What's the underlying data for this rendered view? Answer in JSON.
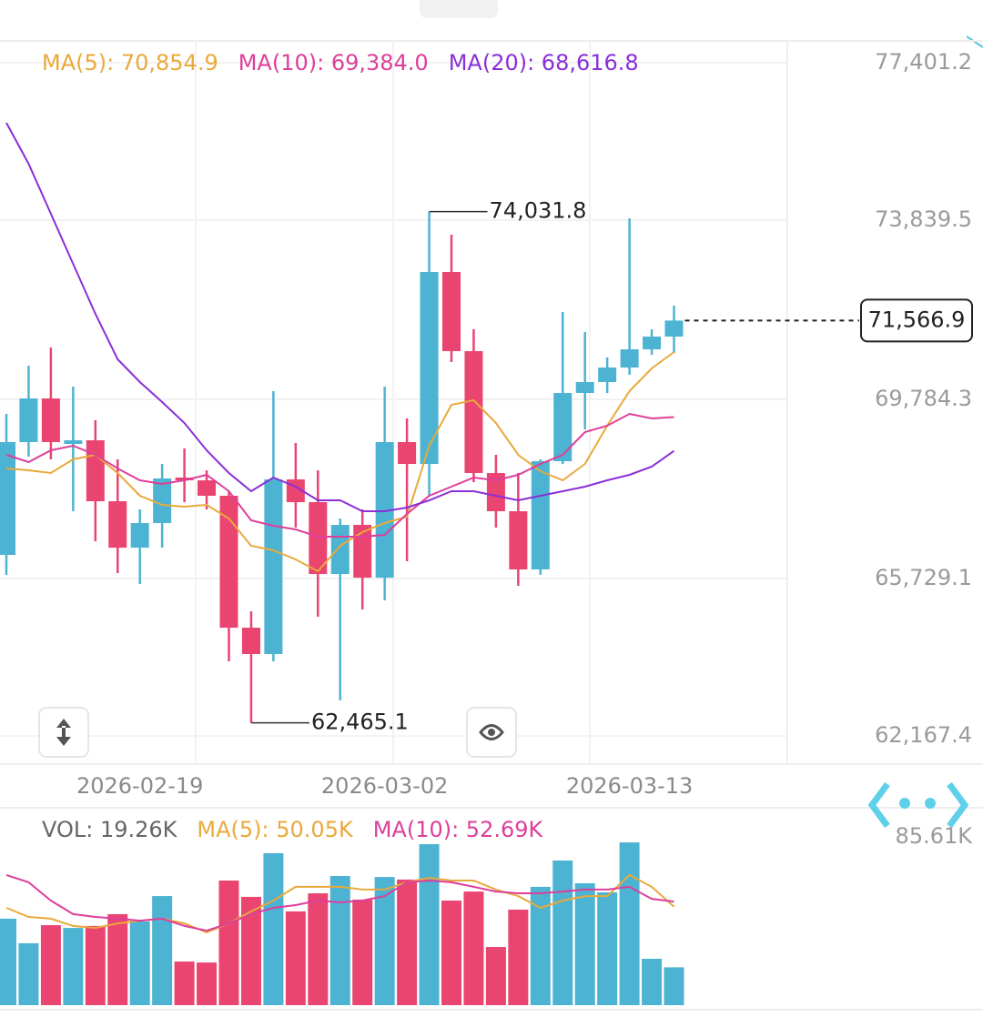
{
  "chart_data": [
    {
      "type": "candlestick",
      "categories": [
        null,
        null,
        null,
        null,
        null,
        null,
        "2026-02-19",
        null,
        null,
        null,
        null,
        null,
        null,
        null,
        null,
        null,
        null,
        "2026-03-02",
        null,
        null,
        null,
        null,
        null,
        null,
        null,
        null,
        null,
        null,
        "2026-03-13",
        null,
        null
      ],
      "open": [
        66265,
        68817,
        69805,
        68776,
        68858,
        67479,
        66429,
        66985,
        68014,
        67952,
        67603,
        64618,
        64022,
        67973,
        67459,
        65833,
        66944,
        65750,
        68817,
        68323,
        72665,
        70875,
        68117,
        67253,
        65936,
        68385,
        69928,
        70175,
        70504,
        70916,
        71204
      ],
      "high": [
        69455,
        70545,
        70957,
        70072,
        69311,
        68426,
        67294,
        68323,
        68673,
        68179,
        67705,
        64989,
        69969,
        68796,
        68179,
        67088,
        67294,
        70072,
        69352,
        74031.8,
        73509,
        71369,
        68529,
        68117,
        68426,
        71760,
        71307,
        70731,
        73880,
        71369,
        71904
      ],
      "low": [
        65812,
        68487,
        68426,
        67253,
        66574,
        65853,
        65606,
        66429,
        67459,
        67294,
        63857,
        62465.1,
        63857,
        66882,
        64865,
        62972,
        65030,
        65236,
        66121,
        67603,
        70628,
        67911,
        66882,
        65565,
        65812,
        68323,
        69105,
        69928,
        70340,
        70792,
        70834
      ],
      "close": [
        68817,
        69805,
        68817,
        68858,
        67479,
        66429,
        66985,
        67994,
        67952,
        67603,
        64618,
        64022,
        67973,
        67459,
        65833,
        66944,
        65750,
        68817,
        68323,
        72665,
        70875,
        68117,
        67253,
        65936,
        68385,
        69928,
        70175,
        70504,
        70916,
        71204,
        71566.9
      ],
      "up_color": "#4db3d2",
      "down_color": "#ea4471",
      "ylim": [
        61532,
        77893
      ],
      "yticks": [
        {
          "value": 62167.4,
          "label": "62,167.4"
        },
        {
          "value": 65729.1,
          "label": "65,729.1"
        },
        {
          "value": 69784.3,
          "label": "69,784.3"
        },
        {
          "value": 73839.5,
          "label": "73,839.5"
        },
        {
          "value": 77401.2,
          "label": "77,401.2"
        }
      ],
      "grid": true,
      "series": [
        {
          "name": "MA(5): 70,854.9",
          "color": "#e9a93b",
          "values": [
            68220,
            68179,
            68117,
            68426,
            68529,
            68117,
            67603,
            67397,
            67356,
            67397,
            67088,
            66471,
            66368,
            66162,
            65894,
            66471,
            66779,
            66985,
            67129,
            68734,
            69661,
            69764,
            69249,
            68529,
            68158,
            67952,
            68323,
            69187,
            69969,
            70484,
            70854.9
          ]
        },
        {
          "name": "MA(10): 69,384.0",
          "color": "#dd3f9b",
          "values": [
            68529,
            68364,
            68632,
            68734,
            68529,
            68220,
            67952,
            67870,
            67952,
            68076,
            67705,
            67047,
            66923,
            66841,
            66676,
            66676,
            66676,
            66718,
            67191,
            67603,
            67808,
            68014,
            67952,
            68076,
            68323,
            68529,
            69043,
            69187,
            69455,
            69352,
            69384.0
          ]
        },
        {
          "name": "MA(20): 68,616.8",
          "color": "#8a2fd8",
          "values": [
            76040,
            75114,
            73982,
            72850,
            71719,
            70690,
            70175,
            69722,
            69249,
            68632,
            68117,
            67705,
            68014,
            67808,
            67500,
            67500,
            67253,
            67253,
            67335,
            67500,
            67705,
            67705,
            67603,
            67500,
            67603,
            67705,
            67808,
            67952,
            68076,
            68261,
            68616.8
          ]
        }
      ],
      "high_label": "74,031.8",
      "low_label": "62,465.1",
      "last_label": "71,566.9"
    },
    {
      "type": "bar",
      "name": "VOL: 19.26K",
      "values": [
        44.0,
        31.5,
        40.7,
        39.3,
        40.3,
        46.3,
        42.6,
        55.5,
        22.2,
        21.7,
        63.4,
        55.1,
        77.3,
        47.7,
        56.9,
        65.7,
        53.7,
        65.2,
        63.9,
        81.9,
        53.2,
        57.8,
        29.6,
        48.6,
        60.2,
        73.6,
        62.0,
        57.4,
        82.8,
        23.6,
        19.26
      ],
      "colors": [
        "#4db3d2",
        "#4db3d2",
        "#ea4471",
        "#4db3d2",
        "#ea4471",
        "#ea4471",
        "#4db3d2",
        "#4db3d2",
        "#ea4471",
        "#ea4471",
        "#ea4471",
        "#ea4471",
        "#4db3d2",
        "#ea4471",
        "#ea4471",
        "#4db3d2",
        "#ea4471",
        "#4db3d2",
        "#ea4471",
        "#4db3d2",
        "#ea4471",
        "#ea4471",
        "#ea4471",
        "#ea4471",
        "#4db3d2",
        "#4db3d2",
        "#4db3d2",
        "#4db3d2",
        "#4db3d2",
        "#4db3d2",
        "#4db3d2"
      ],
      "ylim": [
        0,
        85.61
      ],
      "yticks": [
        {
          "value": 85.61,
          "label": "85.61K"
        }
      ],
      "series": [
        {
          "name": "MA(5): 50.05K",
          "color": "#e9a93b",
          "values": [
            49.5,
            44.9,
            44.0,
            40.3,
            39.3,
            41.6,
            43.0,
            44.0,
            41.6,
            37.0,
            41.6,
            47.7,
            53.2,
            60.2,
            60.2,
            60.2,
            58.8,
            58.8,
            62.5,
            64.8,
            63.4,
            63.4,
            58.8,
            55.5,
            49.5,
            53.2,
            55.5,
            55.5,
            66.2,
            60.2,
            50.05
          ]
        },
        {
          "name": "MA(10): 52.69K",
          "color": "#dd3f9b",
          "values": [
            66.2,
            62.5,
            53.2,
            46.3,
            44.9,
            44.0,
            43.0,
            44.0,
            40.3,
            37.9,
            41.6,
            46.3,
            49.5,
            50.9,
            53.2,
            52.3,
            53.2,
            55.5,
            62.5,
            63.4,
            62.5,
            60.2,
            57.8,
            56.9,
            56.9,
            57.8,
            58.8,
            58.8,
            60.2,
            54.1,
            52.69
          ]
        }
      ]
    }
  ]
}
